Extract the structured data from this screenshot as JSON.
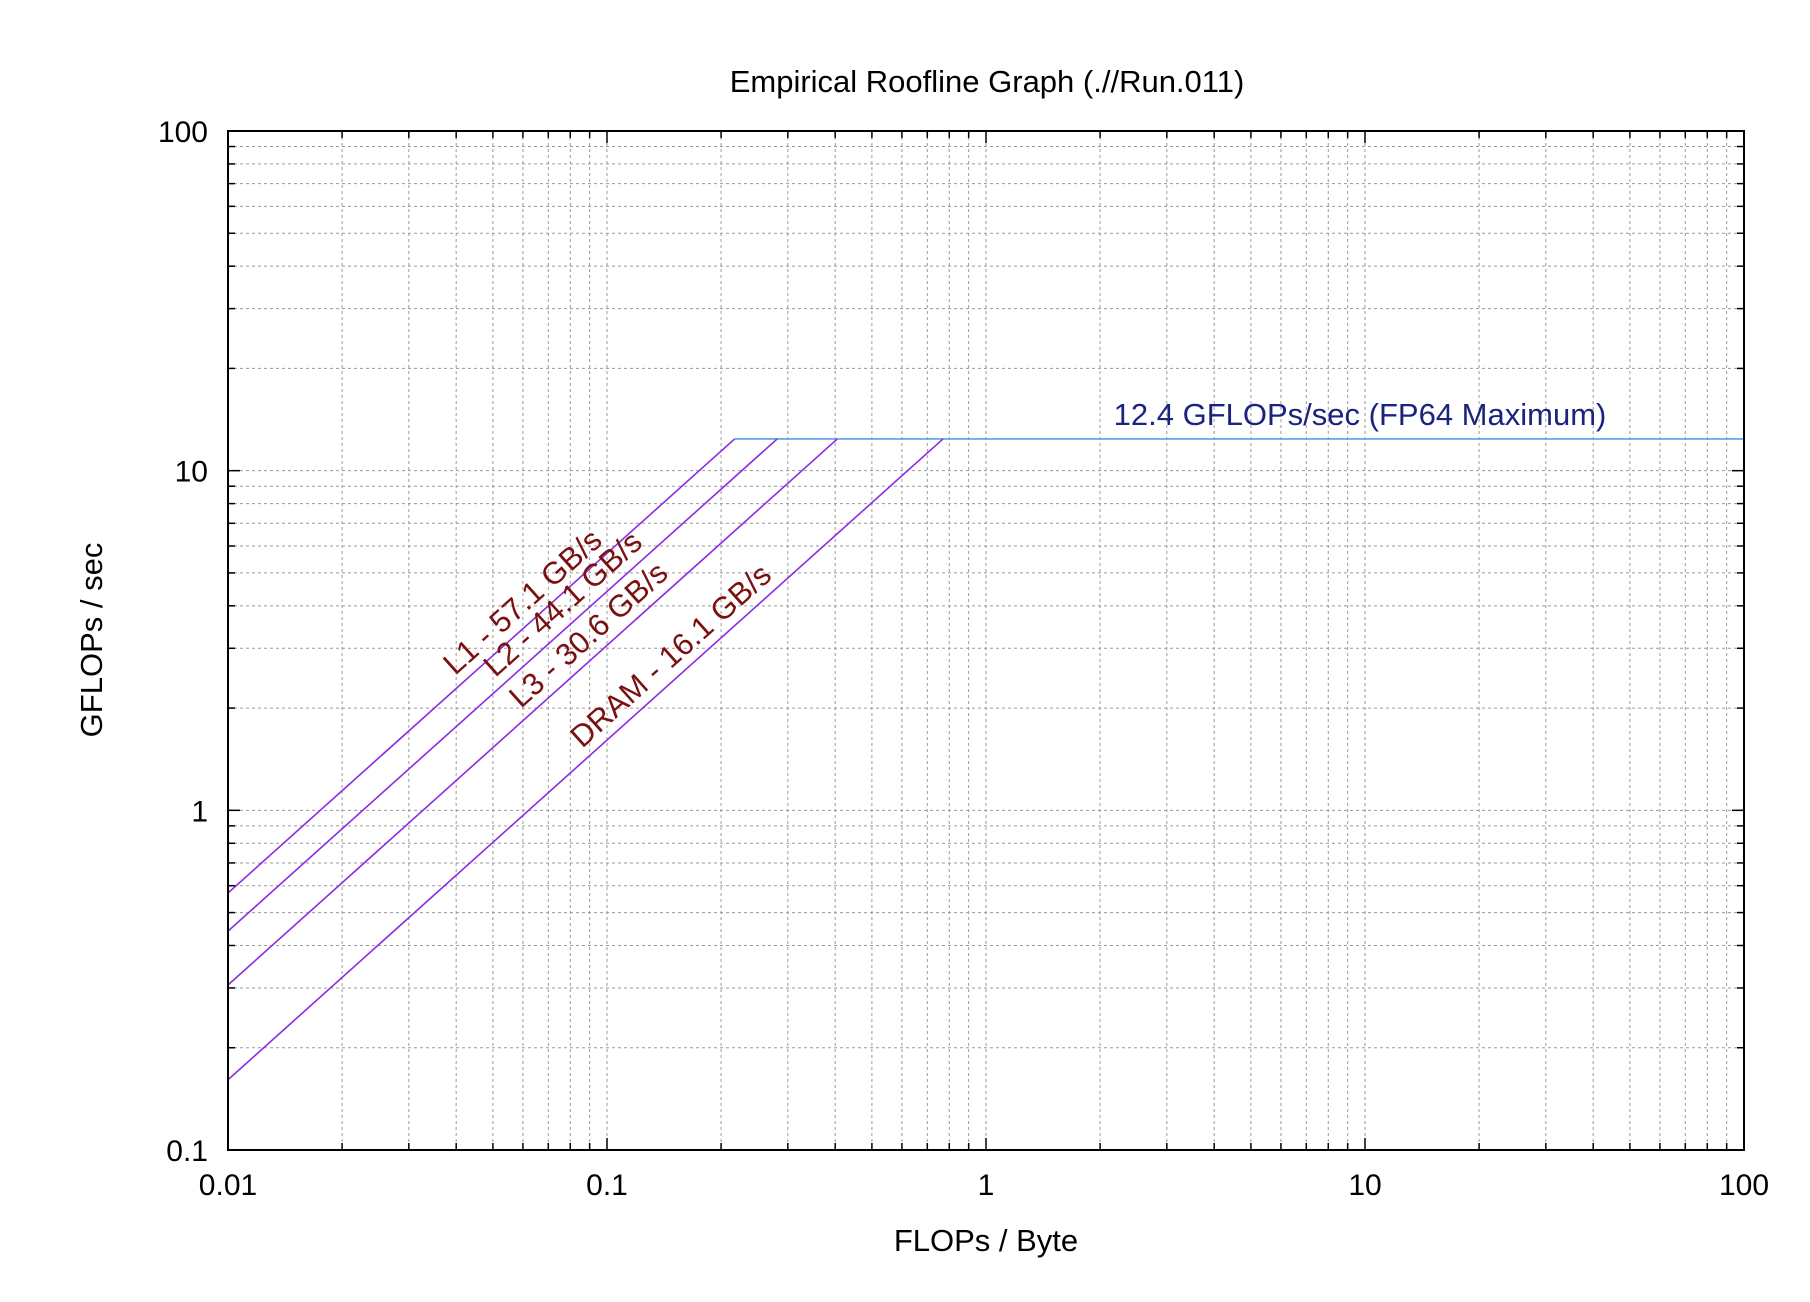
{
  "chart_data": {
    "type": "line",
    "title": "Empirical Roofline Graph (.//Run.011)",
    "xlabel": "FLOPs / Byte",
    "ylabel": "GFLOPs / sec",
    "xscale": "log",
    "yscale": "log",
    "xlim": [
      0.01,
      100
    ],
    "ylim": [
      0.1,
      100
    ],
    "grid": true,
    "x_tick_labels": [
      "0.01",
      "0.1",
      "1",
      "10",
      "100"
    ],
    "y_tick_labels": [
      "0.1",
      "1",
      "10",
      "100"
    ],
    "compute_ceiling": {
      "label": "12.4 GFLOPs/sec (FP64 Maximum)",
      "gflops": 12.4,
      "color": "#5aa0e6",
      "label_color": "#1a237e"
    },
    "bandwidth_ceilings": [
      {
        "label": "L1 - 57.1 GB/s",
        "gbps": 57.1
      },
      {
        "label": "L2 - 44.1 GB/s",
        "gbps": 44.1
      },
      {
        "label": "L3 - 30.6 GB/s",
        "gbps": 30.6
      },
      {
        "label": "DRAM - 16.1 GB/s",
        "gbps": 16.1
      }
    ],
    "bandwidth_line_color": "#8a2be2",
    "bandwidth_label_color": "#7a1010"
  }
}
